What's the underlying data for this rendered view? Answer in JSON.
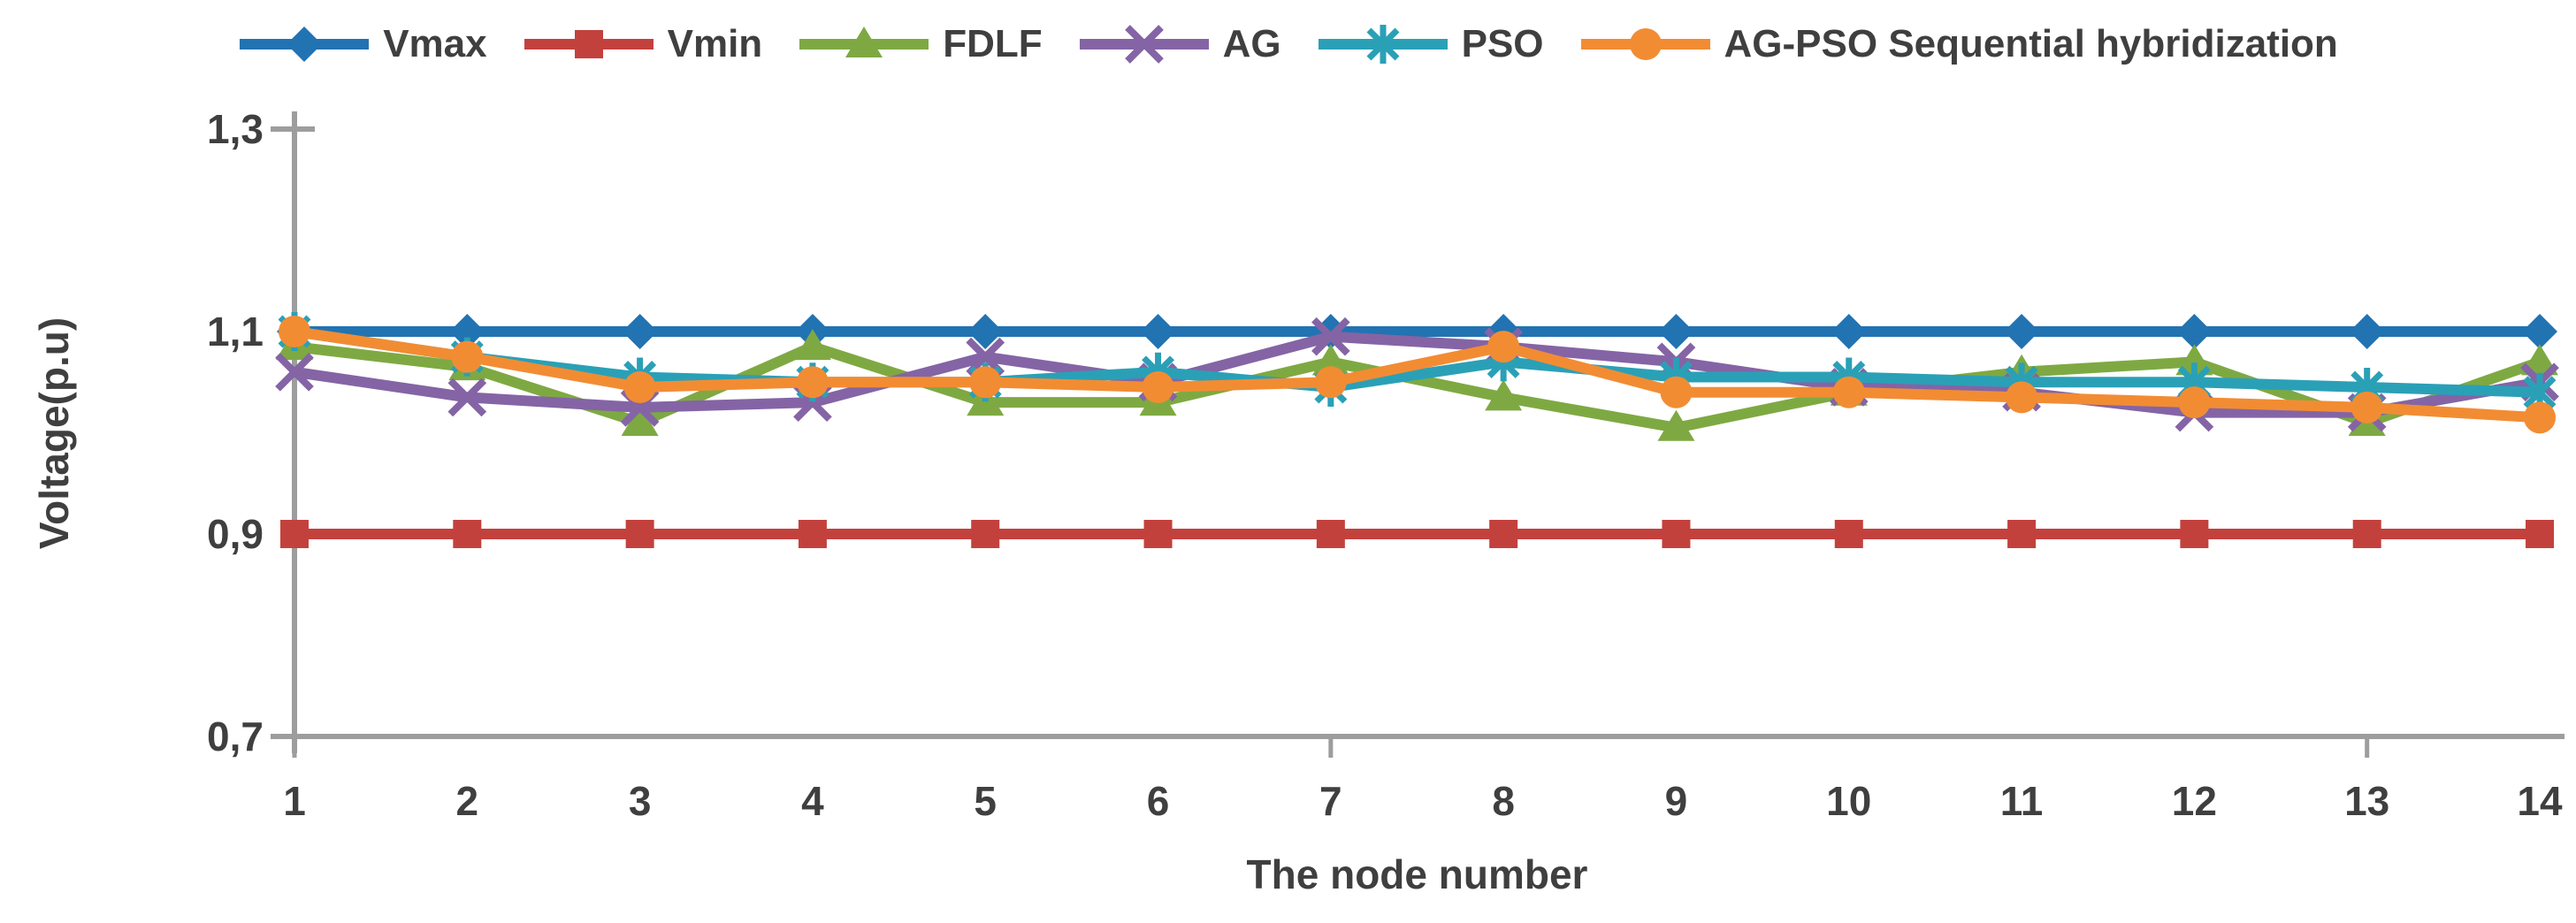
{
  "chart_data": {
    "type": "line",
    "title": "",
    "xlabel": "The node number",
    "ylabel": "Voltage(p.u)",
    "x": [
      1,
      2,
      3,
      4,
      5,
      6,
      7,
      8,
      9,
      10,
      11,
      12,
      13,
      14
    ],
    "ylim": [
      0.7,
      1.3
    ],
    "yticks": [
      1.3,
      1.1,
      0.9,
      0.7
    ],
    "ytick_labels": [
      "1,3",
      "1,1",
      "0,9",
      "0,7"
    ],
    "x_ticks_with_stub": [
      1,
      7,
      13
    ],
    "grid": "off",
    "legend_position": "top",
    "axis_color": "#9d9d9d",
    "text_color": "#3f3f3f",
    "series": [
      {
        "name": "Vmax",
        "color": "#2273B2",
        "marker": "diamond",
        "values": [
          1.1,
          1.1,
          1.1,
          1.1,
          1.1,
          1.1,
          1.1,
          1.1,
          1.1,
          1.1,
          1.1,
          1.1,
          1.1,
          1.1
        ]
      },
      {
        "name": "Vmin",
        "color": "#C3413D",
        "marker": "square",
        "values": [
          0.9,
          0.9,
          0.9,
          0.9,
          0.9,
          0.9,
          0.9,
          0.9,
          0.9,
          0.9,
          0.9,
          0.9,
          0.9,
          0.9
        ]
      },
      {
        "name": "FDLF",
        "color": "#7EA942",
        "marker": "triangle",
        "values": [
          1.085,
          1.065,
          1.01,
          1.085,
          1.03,
          1.03,
          1.07,
          1.035,
          1.005,
          1.04,
          1.06,
          1.07,
          1.01,
          1.07
        ]
      },
      {
        "name": "AG",
        "color": "#8464A5",
        "marker": "x",
        "values": [
          1.06,
          1.035,
          1.025,
          1.03,
          1.075,
          1.05,
          1.095,
          1.085,
          1.07,
          1.045,
          1.04,
          1.02,
          1.02,
          1.05
        ]
      },
      {
        "name": "PSO",
        "color": "#2AA0B7",
        "marker": "asterisk",
        "values": [
          1.1,
          1.075,
          1.055,
          1.05,
          1.05,
          1.06,
          1.045,
          1.07,
          1.055,
          1.055,
          1.05,
          1.05,
          1.045,
          1.04
        ]
      },
      {
        "name": "AG-PSO Sequential hybridization",
        "color": "#F28C33",
        "marker": "circle",
        "values": [
          1.1,
          1.075,
          1.045,
          1.05,
          1.05,
          1.045,
          1.05,
          1.085,
          1.04,
          1.04,
          1.035,
          1.03,
          1.025,
          1.015
        ]
      }
    ]
  }
}
